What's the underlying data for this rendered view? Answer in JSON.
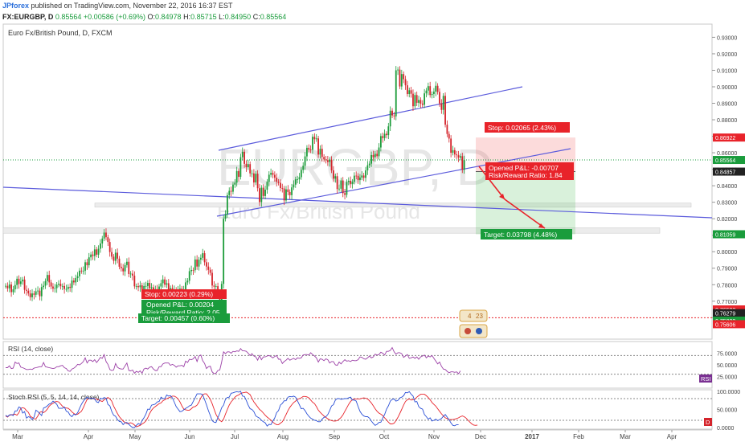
{
  "header": {
    "author": "JPforex",
    "published": "published on TradingView.com, November 22, 2016 16:37 EST",
    "symbol": "FX:EURGBP, D",
    "last": "0.85564",
    "change": "+0.00586 (+0.69%)",
    "o_label": "O:",
    "o": "0.84978",
    "h_label": "H:",
    "h": "0.85715",
    "l_label": "L:",
    "l": "0.84950",
    "c_label": "C:",
    "c": "0.85564"
  },
  "chart_data": {
    "type": "candlestick",
    "title": "Euro Fx/British Pound, D, FXCM",
    "watermark_symbol": "EURGBP, D",
    "watermark_name": "Euro Fx/British Pound",
    "x_ticks": [
      "Mar",
      "Apr",
      "May",
      "Jun",
      "Jul",
      "Aug",
      "Sep",
      "Oct",
      "Nov",
      "Dec",
      "2017",
      "Feb",
      "Mar",
      "Apr"
    ],
    "ylim": [
      0.747,
      0.938
    ],
    "y_ticks": [
      0.93,
      0.92,
      0.91,
      0.9,
      0.89,
      0.88,
      0.87,
      0.86,
      0.85,
      0.84,
      0.83,
      0.82,
      0.81,
      0.8,
      0.79,
      0.78,
      0.77,
      0.76
    ],
    "y_tick_labels": [
      "0.93000",
      "0.92000",
      "0.91000",
      "0.90000",
      "0.89000",
      "0.88000",
      "0.87000",
      "0.86000",
      "0.85000",
      "0.84000",
      "0.83000",
      "0.82000",
      "0.81000",
      "0.80000",
      "0.79000",
      "0.78000",
      "0.77000",
      "0.76000"
    ],
    "price_tags": [
      {
        "value": 0.86922,
        "label": "0.86922",
        "color": "#e8232a"
      },
      {
        "value": 0.85564,
        "label": "0.85564",
        "color": "#1a9c3c"
      },
      {
        "value": 0.84857,
        "label": "0.84857",
        "color": "#222222"
      },
      {
        "value": 0.81059,
        "label": "0.81059",
        "color": "#1a9c3c"
      },
      {
        "value": 0.76502,
        "label": "0.76502",
        "color": "#e8232a"
      },
      {
        "value": 0.76279,
        "label": "0.76279",
        "color": "#222222"
      },
      {
        "value": 0.75822,
        "label": "0.75822",
        "color": "#1a9c3c"
      },
      {
        "value": 0.75606,
        "label": "0.75606",
        "color": "#e8232a"
      }
    ],
    "current_price": 0.85564,
    "red_dotted_level": 0.76,
    "zones": [
      {
        "from": 0.827,
        "to": 0.8295
      },
      {
        "from": 0.8112,
        "to": 0.8145
      }
    ],
    "trade_long": {
      "stop_label": "Stop: 0.00223 (0.29%)",
      "pnl_label": "Opened P&L: 0.00204",
      "rr_label": "Risk/Reward Ratio: 2.05",
      "target_label": "Target: 0.00457 (0.60%)"
    },
    "trade_short": {
      "stop_label": "Stop: 0.02065 (2.43%)",
      "pnl_label": "Opened P&L: -0.00707",
      "rr_label": "Risk/Reward Ratio: 1.84",
      "target_label": "Target: 0.03798 (4.48%)",
      "entry": 0.84857,
      "stop": 0.86922,
      "target": 0.81059
    },
    "events": [
      "4",
      "23"
    ],
    "rsi": {
      "title": "RSI (14, close)",
      "y_ticks": [
        75.0,
        50.0,
        25.0
      ],
      "y_tick_labels": [
        "75.0000",
        "50.0000",
        "25.0000"
      ],
      "badge": "RSI",
      "levels": [
        70,
        30
      ]
    },
    "stoch": {
      "title": "Stoch RSI (5, 5, 14, 14, close)",
      "y_ticks": [
        100,
        50,
        0
      ],
      "y_tick_labels": [
        "100.0000",
        "50.0000",
        "0.0000"
      ],
      "badge": "D",
      "levels": [
        80,
        20
      ]
    },
    "price_series": [
      0.7793,
      0.7778,
      0.7801,
      0.7755,
      0.7772,
      0.7798,
      0.7836,
      0.7804,
      0.782,
      0.7831,
      0.7769,
      0.7763,
      0.7747,
      0.7724,
      0.7747,
      0.7739,
      0.776,
      0.7764,
      0.773,
      0.7786,
      0.7794,
      0.7822,
      0.7859,
      0.7814,
      0.7789,
      0.7776,
      0.7779,
      0.78,
      0.7806,
      0.7791,
      0.7792,
      0.7774,
      0.7774,
      0.7787,
      0.7781,
      0.7825,
      0.7814,
      0.784,
      0.7851,
      0.7885,
      0.7882,
      0.7885,
      0.7936,
      0.7918,
      0.7966,
      0.7983,
      0.7974,
      0.8014,
      0.7982,
      0.8018,
      0.805,
      0.808,
      0.8116,
      0.8088,
      0.8059,
      0.7998,
      0.797,
      0.7945,
      0.7994,
      0.7958,
      0.7909,
      0.79,
      0.7881,
      0.7919,
      0.7939,
      0.7865,
      0.7867,
      0.7855,
      0.779,
      0.7791,
      0.7785,
      0.7796,
      0.7753,
      0.7792,
      0.7792,
      0.7811,
      0.7778,
      0.7784,
      0.7768,
      0.7773,
      0.7767,
      0.7789,
      0.7809,
      0.7832,
      0.78,
      0.7809,
      0.7765,
      0.7779,
      0.7745,
      0.7769,
      0.7761,
      0.7771,
      0.7776,
      0.777,
      0.7772,
      0.7814,
      0.7824,
      0.7882,
      0.7889,
      0.7888,
      0.7953,
      0.791,
      0.7952,
      0.7963,
      0.7991,
      0.7936,
      0.791,
      0.789,
      0.7872,
      0.7795,
      0.7788,
      0.7791,
      0.7747,
      0.7672,
      0.7805,
      0.82,
      0.8226,
      0.8343,
      0.8369,
      0.8364,
      0.8407,
      0.8419,
      0.8489,
      0.8454,
      0.8573,
      0.8606,
      0.8533,
      0.8512,
      0.8531,
      0.8475,
      0.8475,
      0.842,
      0.8473,
      0.8385,
      0.8301,
      0.8388,
      0.8338,
      0.8376,
      0.8424,
      0.8467,
      0.8478,
      0.8466,
      0.8449,
      0.8424,
      0.8418,
      0.8386,
      0.8383,
      0.8311,
      0.8378,
      0.8362,
      0.8343,
      0.839,
      0.8407,
      0.8439,
      0.8439,
      0.8452,
      0.8496,
      0.8521,
      0.8578,
      0.863,
      0.8619,
      0.8618,
      0.8697,
      0.8682,
      0.8687,
      0.8589,
      0.8624,
      0.8575,
      0.856,
      0.8555,
      0.8544,
      0.8558,
      0.8493,
      0.8443,
      0.8458,
      0.838,
      0.8382,
      0.8432,
      0.8355,
      0.8345,
      0.8423,
      0.843,
      0.8411,
      0.8424,
      0.8461,
      0.846,
      0.8435,
      0.845,
      0.8462,
      0.8448,
      0.8493,
      0.8524,
      0.8534,
      0.8586,
      0.8573,
      0.8594,
      0.8579,
      0.8632,
      0.8701,
      0.8689,
      0.8715,
      0.8707,
      0.876,
      0.8855,
      0.8826,
      0.8821,
      0.91,
      0.9104,
      0.9002,
      0.9077,
      0.9046,
      0.9009,
      0.8956,
      0.8979,
      0.8958,
      0.8882,
      0.895,
      0.8903,
      0.892,
      0.8898,
      0.8891,
      0.896,
      0.8977,
      0.9004,
      0.895,
      0.8956,
      0.8971,
      0.9006,
      0.8969,
      0.8899,
      0.886,
      0.8945,
      0.877,
      0.8714,
      0.8686,
      0.86,
      0.8616,
      0.859,
      0.8585,
      0.8571,
      0.8579,
      0.8497,
      0.8556
    ],
    "rsi_series": [
      44,
      44,
      48,
      42,
      43,
      56,
      53,
      54,
      45,
      44,
      42,
      40,
      40,
      41,
      40,
      43,
      44,
      45,
      46,
      46,
      55,
      46,
      45,
      44,
      43,
      42,
      43,
      46,
      46,
      48,
      49,
      44,
      42,
      37,
      36,
      41,
      43,
      46,
      51,
      50,
      53,
      57,
      65,
      54,
      60,
      60,
      57,
      61,
      55,
      60,
      66,
      64,
      72,
      57,
      51,
      40,
      38,
      39,
      53,
      45,
      42,
      41,
      41,
      48,
      54,
      38,
      37,
      39,
      32,
      36,
      34,
      37,
      32,
      41,
      43,
      41,
      45,
      46,
      41,
      38,
      38,
      46,
      46,
      52,
      54,
      54,
      54,
      49,
      51,
      49,
      45,
      48,
      48,
      49,
      46,
      58,
      55,
      62,
      61,
      63,
      68,
      57,
      69,
      71,
      59,
      53,
      42,
      46,
      47,
      35,
      31,
      32,
      38,
      39,
      56,
      78,
      74,
      78,
      78,
      75,
      79,
      78,
      80,
      79,
      85,
      80,
      80,
      79,
      75,
      70,
      74,
      69,
      67,
      60,
      70,
      61,
      67,
      67,
      69,
      70,
      68,
      65,
      68,
      70,
      62,
      62,
      53,
      57,
      60,
      64,
      60,
      62,
      64,
      61,
      65,
      64,
      65,
      71,
      72,
      72,
      71,
      76,
      72,
      69,
      65,
      56,
      63,
      62,
      59,
      63,
      61,
      54,
      57,
      57,
      50,
      49,
      56,
      52,
      57,
      61,
      58,
      59,
      57,
      60,
      59,
      59,
      61,
      67,
      66,
      63,
      62,
      65,
      69,
      65,
      67,
      73,
      71,
      72,
      77,
      75,
      71,
      79,
      79,
      81,
      87,
      78,
      73,
      76,
      76,
      74,
      66,
      69,
      72,
      64,
      65,
      67,
      64,
      67,
      62,
      67,
      69,
      71,
      65,
      69,
      67,
      70,
      64,
      58,
      52,
      56,
      47,
      41,
      40,
      36,
      33,
      35,
      35,
      34,
      35,
      31,
      37
    ],
    "stoch_k": [
      34,
      30,
      35,
      36,
      33,
      46,
      46,
      57,
      54,
      40,
      44,
      26,
      30,
      28,
      22,
      29,
      48,
      44,
      39,
      33,
      54,
      56,
      60,
      65,
      67,
      73,
      69,
      64,
      53,
      53,
      53,
      57,
      45,
      43,
      34,
      30,
      37,
      35,
      41,
      53,
      64,
      73,
      79,
      84,
      80,
      81,
      81,
      79,
      71,
      69,
      81,
      79,
      83,
      81,
      64,
      60,
      45,
      34,
      31,
      22,
      17,
      16,
      8,
      13,
      14,
      9,
      4,
      0,
      0,
      6,
      11,
      8,
      19,
      27,
      37,
      51,
      50,
      62,
      63,
      65,
      71,
      72,
      84,
      80,
      80,
      90,
      87,
      88,
      82,
      70,
      58,
      51,
      44,
      45,
      49,
      53,
      56,
      60,
      62,
      72,
      82,
      93,
      93,
      93,
      91,
      77,
      63,
      47,
      33,
      19,
      15,
      14,
      27,
      40,
      55,
      62,
      78,
      83,
      84,
      95,
      96,
      98,
      99,
      98,
      100,
      87,
      86,
      75,
      62,
      52,
      50,
      44,
      32,
      29,
      26,
      20,
      16,
      13,
      4,
      9,
      8,
      18,
      26,
      41,
      47,
      62,
      67,
      74,
      74,
      84,
      86,
      85,
      87,
      84,
      74,
      63,
      52,
      53,
      47,
      38,
      31,
      26,
      23,
      20,
      19,
      16,
      16,
      23,
      28,
      30,
      36,
      47,
      60,
      63,
      76,
      80,
      80,
      78,
      79,
      80,
      80,
      82,
      84,
      76,
      76,
      73,
      58,
      45,
      37,
      32,
      30,
      30,
      26,
      18,
      11,
      6,
      9,
      14,
      15,
      26,
      36,
      51,
      60,
      73,
      78,
      79,
      73,
      75,
      82,
      84,
      88,
      97,
      96,
      99,
      92,
      87,
      71,
      72,
      58,
      53,
      51,
      36,
      30,
      23,
      27,
      18,
      20,
      23,
      19,
      22,
      25,
      31,
      36,
      29,
      21,
      13,
      6,
      5,
      8,
      8
    ],
    "stoch_d": [
      32,
      29,
      34,
      35,
      36,
      37,
      34,
      41,
      53,
      55,
      53,
      47,
      42,
      31,
      28,
      24,
      24,
      32,
      42,
      44,
      41,
      45,
      51,
      59,
      64,
      67,
      71,
      72,
      71,
      65,
      59,
      55,
      54,
      53,
      49,
      43,
      39,
      36,
      37,
      41,
      45,
      55,
      67,
      78,
      80,
      81,
      81,
      78,
      79,
      77,
      74,
      72,
      77,
      80,
      83,
      79,
      73,
      59,
      49,
      39,
      30,
      24,
      18,
      14,
      11,
      12,
      13,
      11,
      7,
      2,
      4,
      6,
      10,
      13,
      18,
      27,
      39,
      48,
      54,
      58,
      62,
      66,
      68,
      74,
      77,
      80,
      82,
      84,
      87,
      87,
      84,
      79,
      71,
      60,
      51,
      49,
      48,
      48,
      52,
      57,
      58,
      62,
      70,
      82,
      91,
      93,
      93,
      86,
      78,
      66,
      51,
      37,
      27,
      20,
      16,
      23,
      37,
      50,
      62,
      71,
      77,
      84,
      88,
      90,
      94,
      96,
      97,
      98,
      95,
      91,
      81,
      71,
      64,
      57,
      50,
      46,
      40,
      34,
      29,
      25,
      20,
      15,
      11,
      8,
      8,
      12,
      16,
      25,
      36,
      47,
      56,
      63,
      69,
      73,
      78,
      80,
      82,
      86,
      86,
      85,
      82,
      76,
      70,
      66,
      58,
      48,
      42,
      37,
      32,
      28,
      24,
      21,
      19,
      18,
      18,
      19,
      23,
      28,
      35,
      45,
      54,
      64,
      72,
      77,
      79,
      79,
      79,
      79,
      81,
      82,
      81,
      79,
      74,
      68,
      60,
      52,
      45,
      40,
      37,
      33,
      27,
      21,
      15,
      10,
      10,
      12,
      19,
      28,
      39,
      50,
      62,
      72,
      77,
      79,
      76,
      77,
      78,
      84,
      88,
      92,
      92,
      92,
      88,
      83,
      77,
      69,
      64,
      59,
      52,
      45,
      38,
      32,
      27,
      25,
      22,
      22,
      22,
      23,
      25,
      27,
      30,
      32,
      30,
      26,
      20,
      15,
      10,
      7,
      6,
      7
    ]
  }
}
